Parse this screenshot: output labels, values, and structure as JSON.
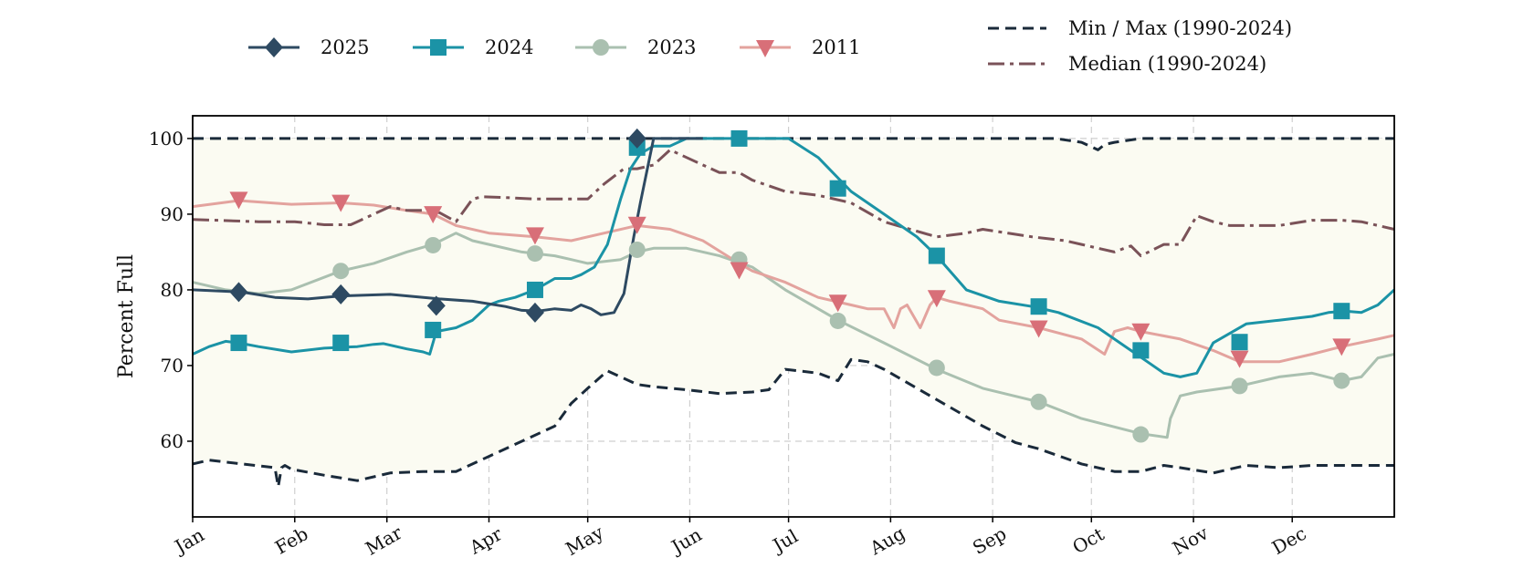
{
  "chart_data": {
    "type": "line",
    "title": "",
    "xlabel": "",
    "ylabel": "Percent Full",
    "x_categories": [
      "Jan",
      "Feb",
      "Mar",
      "Apr",
      "May",
      "Jun",
      "Jul",
      "Aug",
      "Sep",
      "Oct",
      "Nov",
      "Dec"
    ],
    "xlim_days": [
      0,
      365
    ],
    "ylim": [
      50,
      103
    ],
    "yticks": [
      60,
      70,
      80,
      90,
      100
    ],
    "grid": true,
    "legend_placement": "top",
    "band_color": "#fbfbf2",
    "series": [
      {
        "name": "2025",
        "color": "#2e4a62",
        "style": "solid",
        "marker": "diamond",
        "x": [
          0,
          15,
          25,
          35,
          45,
          60,
          75,
          85,
          95,
          100,
          105,
          110,
          115,
          118,
          121,
          124,
          128,
          131,
          134,
          136,
          140,
          150,
          155
        ],
        "y": [
          80,
          79.7,
          79,
          78.8,
          79.2,
          79.4,
          78.8,
          78.5,
          77.8,
          77.3,
          77.2,
          77.5,
          77.3,
          78,
          77.5,
          76.7,
          77,
          79.5,
          87,
          91.5,
          100,
          100,
          100
        ],
        "marker_x": [
          14,
          45,
          74,
          104,
          135
        ],
        "marker_y": [
          79.7,
          79.4,
          77.9,
          77,
          100
        ]
      },
      {
        "name": "2024",
        "color": "#1b93a6",
        "style": "solid",
        "marker": "square",
        "x": [
          0,
          5,
          10,
          14,
          20,
          30,
          40,
          50,
          55,
          58,
          65,
          70,
          72,
          74,
          80,
          85,
          90,
          93,
          98,
          104,
          110,
          115,
          118,
          122,
          126,
          130,
          133,
          136,
          140,
          145,
          150,
          160,
          170,
          181,
          190,
          200,
          210,
          220,
          226,
          235,
          245,
          255,
          263,
          275,
          285,
          290,
          295,
          300,
          305,
          310,
          320,
          330,
          340,
          345,
          350,
          355,
          360,
          365
        ],
        "y": [
          71.5,
          72.5,
          73.2,
          73,
          72.5,
          71.8,
          72.3,
          72.5,
          72.8,
          72.9,
          72.2,
          71.8,
          71.5,
          74.5,
          75,
          76,
          78,
          78.5,
          79,
          80,
          81.5,
          81.5,
          82,
          83,
          86,
          92,
          96,
          98,
          99,
          99,
          100,
          100,
          100,
          100,
          97.5,
          93,
          90,
          87,
          84.5,
          80,
          78.5,
          77.8,
          77,
          75,
          72,
          70.5,
          69,
          68.5,
          69,
          73,
          75.5,
          76,
          76.5,
          77,
          77.2,
          77,
          78,
          80
        ],
        "marker_x": [
          14,
          45,
          73,
          104,
          135,
          166,
          196,
          226,
          257,
          288,
          318,
          349
        ],
        "marker_y": [
          73,
          73,
          74.7,
          80,
          98.8,
          100,
          93.4,
          84.5,
          77.8,
          72,
          73.1,
          77.2
        ]
      },
      {
        "name": "2023",
        "color": "#aac0b0",
        "style": "solid",
        "marker": "circle",
        "x": [
          0,
          10,
          20,
          30,
          45,
          55,
          65,
          73,
          80,
          85,
          90,
          100,
          104,
          110,
          115,
          120,
          130,
          135,
          140,
          150,
          160,
          170,
          180,
          190,
          196,
          210,
          226,
          240,
          257,
          270,
          288,
          296,
          297,
          300,
          305,
          318,
          330,
          340,
          349,
          355,
          360,
          365
        ],
        "y": [
          81,
          80,
          79.5,
          80,
          82.5,
          83.5,
          85,
          86,
          87.5,
          86.5,
          86,
          85,
          84.8,
          84.5,
          84,
          83.5,
          84,
          85,
          85.5,
          85.5,
          84.5,
          83,
          80,
          77.5,
          76,
          73,
          69.5,
          67,
          65.2,
          63,
          61,
          60.5,
          63,
          66,
          66.5,
          67.3,
          68.5,
          69,
          68,
          68.5,
          71,
          71.5
        ],
        "marker_x": [
          45,
          73,
          104,
          135,
          166,
          196,
          226,
          257,
          288,
          318,
          349
        ],
        "marker_y": [
          82.5,
          85.9,
          84.8,
          85.3,
          84,
          75.9,
          69.7,
          65.2,
          60.9,
          67.3,
          68
        ]
      },
      {
        "name": "2011",
        "color": "#e3a39e",
        "marker_color": "#d86f78",
        "style": "solid",
        "marker": "triangle-down",
        "x": [
          0,
          14,
          30,
          45,
          55,
          65,
          73,
          80,
          90,
          104,
          115,
          125,
          135,
          145,
          155,
          166,
          170,
          180,
          190,
          200,
          205,
          210,
          213,
          215,
          217,
          221,
          224,
          226,
          230,
          235,
          240,
          245,
          257,
          270,
          277,
          280,
          284,
          288,
          300,
          310,
          318,
          330,
          340,
          349,
          360,
          365
        ],
        "y": [
          91,
          91.8,
          91.3,
          91.5,
          91.2,
          90.5,
          90,
          88.5,
          87.5,
          87,
          86.5,
          87.5,
          88.5,
          88,
          86.5,
          83.5,
          82.5,
          81,
          79,
          78,
          77.5,
          77.5,
          75,
          77.5,
          78,
          75,
          78,
          79,
          78.5,
          78,
          77.5,
          76,
          75,
          73.5,
          71.5,
          74.5,
          75,
          74.5,
          73.5,
          72,
          70.5,
          70.5,
          71.5,
          72.5,
          73.5,
          74
        ],
        "marker_x": [
          14,
          45,
          73,
          104,
          135,
          166,
          196,
          226,
          257,
          288,
          318,
          349
        ],
        "marker_y": [
          92,
          91.6,
          90.1,
          87.3,
          88.7,
          82.7,
          78.4,
          79,
          75,
          74.6,
          71,
          72.6
        ]
      },
      {
        "name": "Min / Max (1990-2024)",
        "color": "#1a2a3a",
        "style": "dashed",
        "min_x": [
          0,
          5,
          15,
          25,
          26,
          27,
          28,
          30,
          40,
          50,
          60,
          70,
          80,
          90,
          100,
          110,
          115,
          120,
          126,
          130,
          135,
          140,
          150,
          160,
          170,
          175,
          180,
          190,
          196,
          200,
          205,
          210,
          220,
          230,
          240,
          250,
          257,
          270,
          280,
          288,
          295,
          300,
          310,
          320,
          330,
          340,
          350,
          360,
          365
        ],
        "min_y": [
          57,
          57.5,
          57,
          56.5,
          54,
          56.5,
          56.8,
          56.3,
          55.5,
          54.8,
          55.8,
          56,
          56,
          58,
          60,
          62,
          65,
          67,
          69.3,
          68.5,
          67.5,
          67.2,
          66.8,
          66.3,
          66.5,
          66.8,
          69.5,
          69,
          68,
          70.8,
          70.5,
          69.5,
          67,
          64.5,
          62,
          59.8,
          59,
          57,
          56,
          56,
          56.8,
          56.5,
          55.8,
          56.8,
          56.5,
          56.8,
          56.8,
          56.8,
          56.8
        ],
        "max_x": [
          0,
          260,
          262,
          270,
          275,
          277,
          280,
          288,
          365
        ],
        "max_y": [
          100,
          100,
          100,
          99.5,
          98.5,
          99.2,
          99.5,
          100,
          100
        ]
      },
      {
        "name": "Median (1990-2024)",
        "color": "#7a5258",
        "style": "dashdot",
        "x": [
          0,
          20,
          31,
          40,
          45,
          48,
          50,
          55,
          60,
          65,
          70,
          75,
          80,
          85,
          88,
          95,
          104,
          110,
          115,
          120,
          125,
          131,
          135,
          140,
          145,
          150,
          160,
          166,
          170,
          180,
          190,
          200,
          210,
          226,
          235,
          240,
          255,
          265,
          270,
          275,
          280,
          283,
          285,
          288,
          295,
          300,
          305,
          310,
          315,
          320,
          330,
          340,
          349,
          355,
          365
        ],
        "y": [
          89.3,
          89,
          89,
          88.6,
          88.6,
          88.6,
          89,
          90,
          91,
          90.5,
          90.5,
          90.2,
          89,
          92,
          92.3,
          92.2,
          92,
          92,
          92,
          92,
          94,
          96,
          96,
          96.5,
          98.5,
          97.5,
          95.5,
          95.5,
          94.5,
          93,
          92.5,
          91.5,
          89,
          87,
          87.5,
          88,
          87,
          86.5,
          86,
          85.5,
          85,
          85.5,
          85.8,
          84.5,
          86,
          86,
          89.8,
          89,
          88.5,
          88.5,
          88.5,
          89.2,
          89.2,
          89,
          88
        ]
      }
    ]
  }
}
